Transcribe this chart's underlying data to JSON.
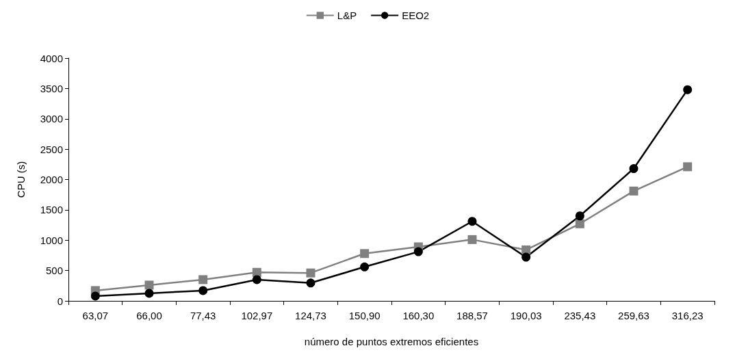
{
  "chart_data": {
    "type": "line",
    "xlabel": "número de puntos extremos eficientes",
    "ylabel": "CPU (s)",
    "categories": [
      "63,07",
      "66,00",
      "77,43",
      "102,97",
      "124,73",
      "150,90",
      "160,30",
      "188,57",
      "190,03",
      "235,43",
      "259,63",
      "316,23"
    ],
    "series": [
      {
        "name": "L&P",
        "color": "#808080",
        "marker": "square",
        "values": [
          170,
          260,
          350,
          470,
          460,
          780,
          890,
          1010,
          840,
          1270,
          1810,
          2210
        ]
      },
      {
        "name": "EEO2",
        "color": "#000000",
        "marker": "circle",
        "values": [
          80,
          125,
          170,
          350,
          295,
          560,
          810,
          1310,
          720,
          1400,
          2180,
          3480
        ]
      }
    ],
    "ylim": [
      0,
      4000
    ],
    "yticks": [
      0,
      500,
      1000,
      1500,
      2000,
      2500,
      3000,
      3500,
      4000
    ],
    "grid": false,
    "legend": "top",
    "line_style": "solid"
  }
}
